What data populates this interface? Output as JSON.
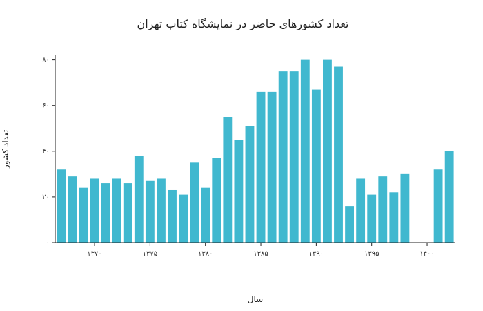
{
  "chart_data": {
    "type": "bar",
    "title": "تعداد کشورهای حاضر در نمایشگاه کتاب تهران",
    "xlabel": "سال",
    "ylabel": "تعداد کشور",
    "x": [
      1367,
      1368,
      1369,
      1370,
      1371,
      1372,
      1373,
      1374,
      1375,
      1376,
      1377,
      1378,
      1379,
      1380,
      1381,
      1382,
      1383,
      1384,
      1385,
      1386,
      1387,
      1388,
      1389,
      1390,
      1391,
      1392,
      1393,
      1394,
      1395,
      1396,
      1397,
      1398,
      1399,
      1400,
      1401,
      1402
    ],
    "values": [
      32,
      29,
      24,
      28,
      26,
      28,
      26,
      38,
      27,
      28,
      23,
      21,
      35,
      24,
      37,
      55,
      45,
      51,
      66,
      66,
      75,
      75,
      80,
      67,
      80,
      77,
      16,
      28,
      21,
      29,
      22,
      30,
      null,
      null,
      32,
      40
    ],
    "xticks": [
      1370,
      1375,
      1380,
      1385,
      1390,
      1395,
      1400
    ],
    "xtick_labels": [
      "۱۳۷۰",
      "۱۳۷۵",
      "۱۳۸۰",
      "۱۳۸۵",
      "۱۳۹۰",
      "۱۳۹۵",
      "۱۴۰۰"
    ],
    "yticks": [
      0,
      20,
      40,
      60,
      80
    ],
    "ytick_labels": [
      "۰",
      "۲۰",
      "۴۰",
      "۶۰",
      "۸۰"
    ],
    "xlim": [
      1366.45,
      1402.55
    ],
    "ylim": [
      0,
      82
    ],
    "bar_color": "#40b8cf",
    "grid": false,
    "legend": "none"
  }
}
